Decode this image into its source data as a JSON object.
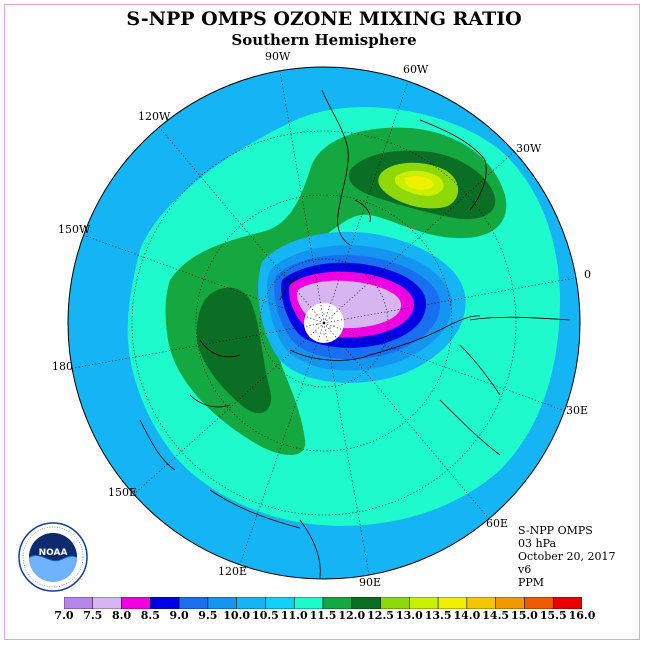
{
  "title": "S-NPP OMPS OZONE MIXING RATIO",
  "subtitle": "Southern Hemisphere",
  "longitude_labels": [
    "90W",
    "60W",
    "30W",
    "0",
    "30E",
    "60E",
    "90E",
    "120E",
    "150E",
    "180",
    "150W",
    "120W"
  ],
  "info": {
    "line1": "S-NPP OMPS",
    "line2": "03 hPa",
    "line3": "October 20, 2017",
    "line4": "v6",
    "line5": "PPM"
  },
  "logo_text": "NOAA",
  "colorbar": {
    "ticks": [
      "7.0",
      "7.5",
      "8.0",
      "8.5",
      "9.0",
      "9.5",
      "10.0",
      "10.5",
      "11.0",
      "11.5",
      "12.0",
      "12.5",
      "13.0",
      "13.5",
      "14.0",
      "14.5",
      "15.0",
      "15.5",
      "16.0"
    ],
    "colors": [
      "#b685e8",
      "#d6b5f0",
      "#f000e0",
      "#0000e6",
      "#1a6ef0",
      "#1496f0",
      "#14b4f5",
      "#10d0f8",
      "#1efacc",
      "#15a840",
      "#0a6e24",
      "#8ed80a",
      "#c8f000",
      "#f0f000",
      "#f0c800",
      "#f09a00",
      "#f05a00",
      "#e80000",
      "#8c5a3c"
    ]
  }
}
